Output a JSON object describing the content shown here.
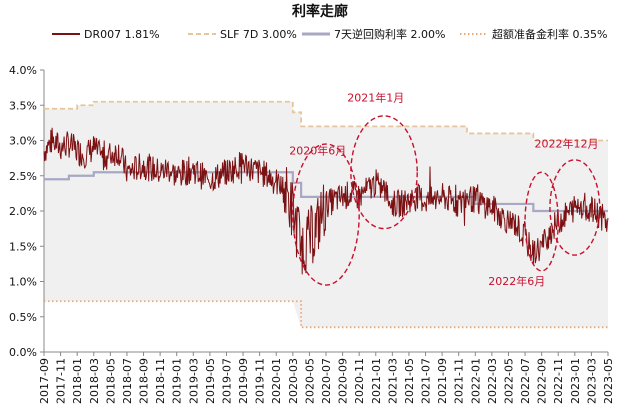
{
  "chart_data": {
    "type": "line",
    "title": "利率走廊",
    "xlabel": "",
    "ylabel": "",
    "ylim": [
      0.0,
      4.0
    ],
    "y_ticks": [
      "0.0%",
      "0.5%",
      "1.0%",
      "1.5%",
      "2.0%",
      "2.5%",
      "3.0%",
      "3.5%",
      "4.0%"
    ],
    "x_range": [
      "2017-09",
      "2023-05"
    ],
    "x_ticks": [
      "2017-09",
      "2017-11",
      "2018-01",
      "2018-03",
      "2018-05",
      "2018-07",
      "2018-09",
      "2018-11",
      "2019-01",
      "2019-03",
      "2019-05",
      "2019-07",
      "2019-09",
      "2019-11",
      "2020-01",
      "2020-03",
      "2020-05",
      "2020-07",
      "2020-09",
      "2020-11",
      "2021-01",
      "2021-03",
      "2021-05",
      "2021-07",
      "2021-09",
      "2021-11",
      "2022-01",
      "2022-03",
      "2022-05",
      "2022-07",
      "2022-09",
      "2022-11",
      "2023-01",
      "2023-03",
      "2023-05"
    ],
    "grid": false,
    "legend_position": "top",
    "background_band": {
      "lower": "超额准备金利率",
      "upper": "SLF 7D",
      "color": "#f0f0f0"
    },
    "series": [
      {
        "name": "DR007",
        "legend_value": "1.81%",
        "color": "#7b1113",
        "style": "solid",
        "points": [
          [
            "2017-09",
            2.85
          ],
          [
            "2017-10",
            3.0
          ],
          [
            "2017-11",
            2.9
          ],
          [
            "2017-12",
            2.95
          ],
          [
            "2018-01",
            2.85
          ],
          [
            "2018-02",
            2.8
          ],
          [
            "2018-03",
            2.9
          ],
          [
            "2018-04",
            2.75
          ],
          [
            "2018-05",
            2.8
          ],
          [
            "2018-06",
            2.85
          ],
          [
            "2018-07",
            2.55
          ],
          [
            "2018-08",
            2.6
          ],
          [
            "2018-09",
            2.65
          ],
          [
            "2018-10",
            2.6
          ],
          [
            "2018-11",
            2.55
          ],
          [
            "2018-12",
            2.6
          ],
          [
            "2019-01",
            2.5
          ],
          [
            "2019-02",
            2.55
          ],
          [
            "2019-03",
            2.6
          ],
          [
            "2019-04",
            2.5
          ],
          [
            "2019-05",
            2.45
          ],
          [
            "2019-06",
            2.5
          ],
          [
            "2019-07",
            2.55
          ],
          [
            "2019-08",
            2.6
          ],
          [
            "2019-09",
            2.7
          ],
          [
            "2019-10",
            2.6
          ],
          [
            "2019-11",
            2.55
          ],
          [
            "2019-12",
            2.5
          ],
          [
            "2020-01",
            2.4
          ],
          [
            "2020-02",
            2.3
          ],
          [
            "2020-03",
            2.0
          ],
          [
            "2020-04",
            1.5
          ],
          [
            "2020-05",
            1.6
          ],
          [
            "2020-06",
            1.8
          ],
          [
            "2020-07",
            2.1
          ],
          [
            "2020-08",
            2.15
          ],
          [
            "2020-09",
            2.2
          ],
          [
            "2020-10",
            2.25
          ],
          [
            "2020-11",
            2.2
          ],
          [
            "2020-12",
            2.3
          ],
          [
            "2021-01",
            2.4
          ],
          [
            "2021-02",
            2.3
          ],
          [
            "2021-03",
            2.1
          ],
          [
            "2021-04",
            2.1
          ],
          [
            "2021-05",
            2.15
          ],
          [
            "2021-06",
            2.2
          ],
          [
            "2021-07",
            2.15
          ],
          [
            "2021-08",
            2.15
          ],
          [
            "2021-09",
            2.2
          ],
          [
            "2021-10",
            2.15
          ],
          [
            "2021-11",
            2.1
          ],
          [
            "2021-12",
            2.2
          ],
          [
            "2022-01",
            2.15
          ],
          [
            "2022-02",
            2.1
          ],
          [
            "2022-03",
            2.05
          ],
          [
            "2022-04",
            1.95
          ],
          [
            "2022-05",
            1.85
          ],
          [
            "2022-06",
            1.8
          ],
          [
            "2022-07",
            1.6
          ],
          [
            "2022-08",
            1.4
          ],
          [
            "2022-09",
            1.5
          ],
          [
            "2022-10",
            1.7
          ],
          [
            "2022-11",
            1.85
          ],
          [
            "2022-12",
            1.95
          ],
          [
            "2023-01",
            2.05
          ],
          [
            "2023-02",
            2.1
          ],
          [
            "2023-03",
            2.0
          ],
          [
            "2023-04",
            1.95
          ],
          [
            "2023-05",
            1.81
          ]
        ]
      },
      {
        "name": "SLF 7D",
        "legend_value": "3.00%",
        "color": "#e6c59c",
        "style": "dashed",
        "points": [
          [
            "2017-09",
            3.45
          ],
          [
            "2018-01",
            3.5
          ],
          [
            "2018-03",
            3.55
          ],
          [
            "2020-03",
            3.4
          ],
          [
            "2020-04",
            3.2
          ],
          [
            "2021-12",
            3.1
          ],
          [
            "2022-08",
            3.0
          ],
          [
            "2023-05",
            3.0
          ]
        ]
      },
      {
        "name": "7天逆回购利率",
        "legend_value": "2.00%",
        "color": "#a8a8c4",
        "style": "solid",
        "points": [
          [
            "2017-09",
            2.45
          ],
          [
            "2017-12",
            2.5
          ],
          [
            "2018-03",
            2.55
          ],
          [
            "2020-03",
            2.4
          ],
          [
            "2020-04",
            2.2
          ],
          [
            "2022-01",
            2.1
          ],
          [
            "2022-08",
            2.0
          ],
          [
            "2023-05",
            2.0
          ]
        ]
      },
      {
        "name": "超额准备金利率",
        "legend_value": "0.35%",
        "color": "#e8a878",
        "style": "dotted",
        "points": [
          [
            "2017-09",
            0.72
          ],
          [
            "2020-04",
            0.72
          ],
          [
            "2020-04",
            0.35
          ],
          [
            "2023-05",
            0.35
          ]
        ]
      }
    ],
    "annotations": [
      {
        "text": "2020年6月",
        "label_date": "2020-06",
        "label_value": 2.8,
        "ellipse": {
          "center": [
            "2020-07",
            1.95
          ],
          "width_months": 4,
          "height_value": 2.0
        }
      },
      {
        "text": "2021年1月",
        "label_date": "2021-01",
        "label_value": 3.55,
        "ellipse": {
          "center": [
            "2021-02",
            2.55
          ],
          "width_months": 4,
          "height_value": 1.6
        }
      },
      {
        "text": "2022年6月",
        "label_date": "2022-06",
        "label_value": 0.95,
        "ellipse": {
          "center": [
            "2022-09",
            1.85
          ],
          "width_months": 2,
          "height_value": 1.4
        }
      },
      {
        "text": "2022年12月",
        "label_date": "2022-12",
        "label_value": 2.9,
        "ellipse": {
          "center": [
            "2023-01",
            2.05
          ],
          "width_months": 3,
          "height_value": 1.35
        }
      }
    ]
  }
}
